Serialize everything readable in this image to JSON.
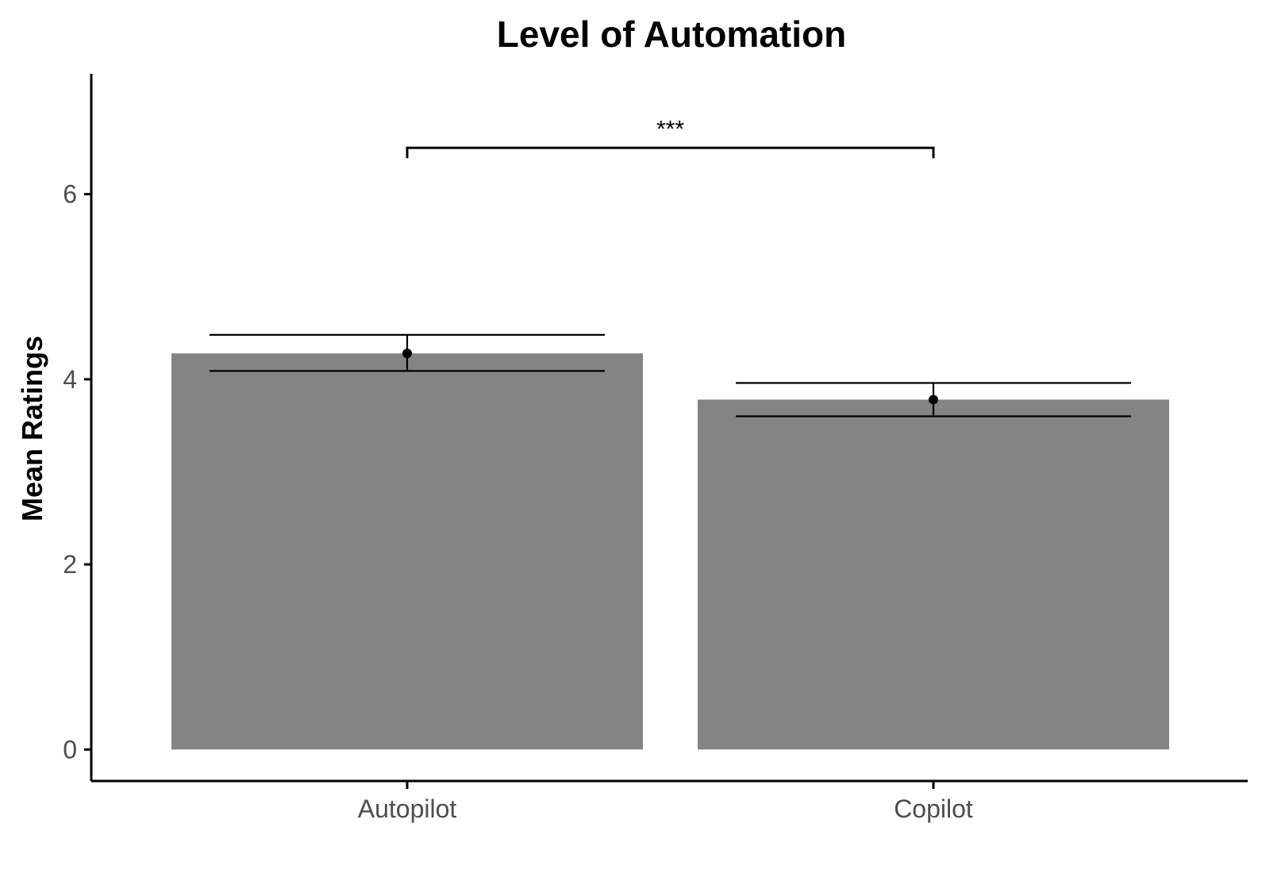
{
  "chart_data": {
    "type": "bar",
    "title": "Level of Automation",
    "xlabel": "",
    "ylabel": "Mean Ratings",
    "categories": [
      "Autopilot",
      "Copilot"
    ],
    "values": [
      4.28,
      3.78
    ],
    "error_bars": [
      {
        "low": 4.09,
        "high": 4.48
      },
      {
        "low": 3.6,
        "high": 3.96
      }
    ],
    "y_ticks": [
      "0",
      "2",
      "4",
      "6"
    ],
    "ylim": [
      -0.34,
      7.3
    ],
    "significance": {
      "from": "Autopilot",
      "to": "Copilot",
      "label": "***",
      "y": 6.5
    },
    "grid": false,
    "legend": "none",
    "colors": {
      "bar": "#848484",
      "axis": "#000000",
      "tick_label": "#4d4d4d"
    }
  }
}
